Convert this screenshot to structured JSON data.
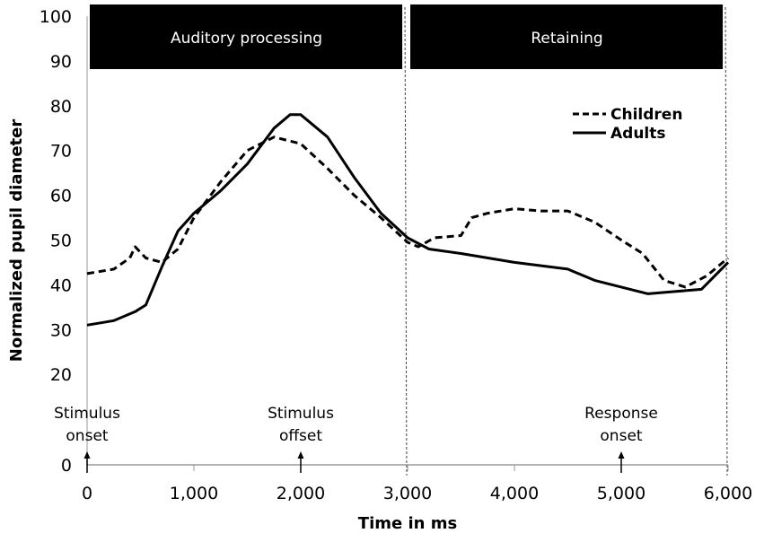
{
  "chart_data": {
    "type": "line",
    "xlabel": "Time in ms",
    "ylabel": "Normalized pupil diameter",
    "xlim": [
      0,
      6000
    ],
    "ylim": [
      0,
      100
    ],
    "y_axis_break": [
      0,
      20
    ],
    "xticks": [
      0,
      1000,
      2000,
      3000,
      4000,
      5000,
      6000
    ],
    "xtick_labels": [
      "0",
      "1,000",
      "2,000",
      "3,000",
      "4,000",
      "5,000",
      "6,000"
    ],
    "yticks": [
      0,
      20,
      30,
      40,
      50,
      60,
      70,
      80,
      90,
      100
    ],
    "ytick_labels": [
      "0",
      "20",
      "30",
      "40",
      "50",
      "60",
      "70",
      "80",
      "90",
      "100"
    ],
    "grid": false,
    "legend_position": "top-right",
    "phases": [
      {
        "label": "Auditory processing",
        "start": 0,
        "end": 2950
      },
      {
        "label": "Retaining",
        "start": 3000,
        "end": 5950
      }
    ],
    "phase_boundaries": [
      3000,
      6000
    ],
    "annotations": [
      {
        "x": 0,
        "line1": "Stimulus",
        "line2": "onset"
      },
      {
        "x": 2000,
        "line1": "Stimulus",
        "line2": "offset"
      },
      {
        "x": 5000,
        "line1": "Response",
        "line2": "onset"
      }
    ],
    "series": [
      {
        "name": "Children",
        "style": "dashed",
        "color": "#000000",
        "x": [
          0,
          250,
          400,
          450,
          550,
          700,
          850,
          1000,
          1250,
          1500,
          1750,
          2000,
          2250,
          2500,
          2750,
          3000,
          3100,
          3250,
          3500,
          3600,
          3750,
          4000,
          4250,
          4500,
          4750,
          5000,
          5200,
          5400,
          5600,
          5800,
          6000
        ],
        "y": [
          42.5,
          43.5,
          46,
          48.5,
          46,
          45,
          48,
          55,
          63,
          70,
          73,
          71.5,
          66,
          60,
          55,
          49.5,
          48.5,
          50.5,
          51,
          55,
          56,
          57,
          56.5,
          56.5,
          54,
          50,
          47,
          41,
          39.5,
          42,
          46
        ]
      },
      {
        "name": "Adults",
        "style": "solid",
        "color": "#000000",
        "x": [
          0,
          250,
          450,
          550,
          700,
          850,
          1000,
          1250,
          1500,
          1750,
          1900,
          2000,
          2250,
          2500,
          2750,
          3000,
          3200,
          3500,
          4000,
          4500,
          4750,
          5000,
          5250,
          5500,
          5750,
          6000
        ],
        "y": [
          31,
          32,
          34,
          35.5,
          44,
          52,
          56,
          61,
          67,
          75,
          78,
          78,
          73,
          64,
          56,
          50.5,
          48,
          47,
          45,
          43.5,
          41,
          39.5,
          38,
          38.5,
          39,
          45
        ]
      }
    ]
  }
}
